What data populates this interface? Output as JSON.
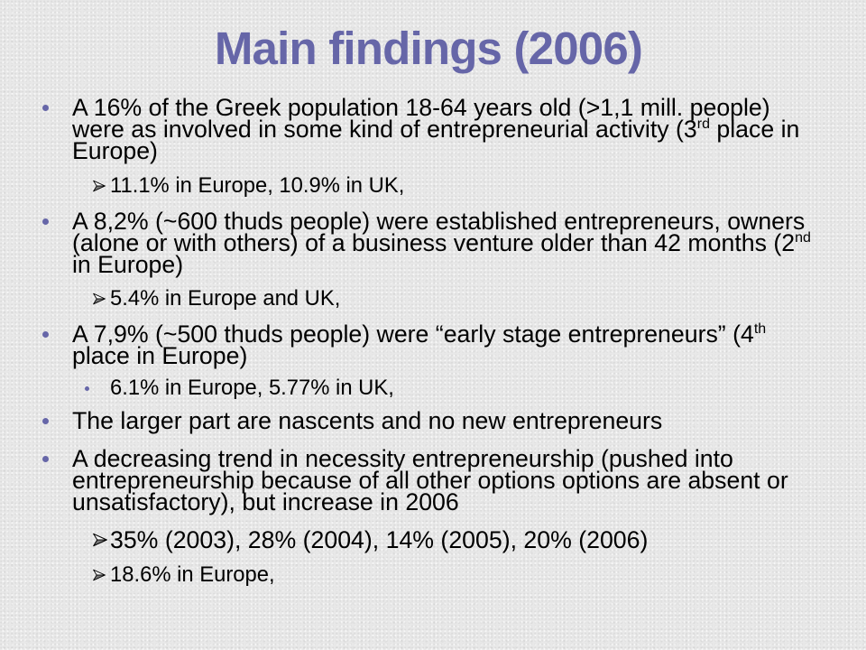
{
  "slide": {
    "title": "Main findings (2006)",
    "colors": {
      "title": "#6666a8",
      "text": "#000000",
      "background": "#e8e8e8",
      "bullet": "#6666a8"
    },
    "findings": [
      {
        "marker": "bullet-dot-icon",
        "before_sup": "A 16% of the Greek population 18-64 years old (>1,1 mill. people) were as involved in some kind of entrepreneurial activity (3",
        "sup": "rd",
        "after_sup": " place in Europe)",
        "details": [
          {
            "marker": "arrow-icon",
            "text": "11.1% in Europe, 10.9% in UK,"
          }
        ]
      },
      {
        "marker": "bullet-dot-icon",
        "before_sup": "A 8,2% (~600 thuds people) were established entrepreneurs, owners (alone or with others) of a business venture older than 42 months (2",
        "sup": "nd",
        "after_sup": " in Europe)",
        "details": [
          {
            "marker": "arrow-icon",
            "text": "5.4% in Europe and UK,"
          }
        ]
      },
      {
        "marker": "bullet-dot-icon",
        "before_sup": "A 7,9% (~500 thuds people) were “early stage entrepreneurs” (4",
        "sup": "th",
        "after_sup": " place in Europe)",
        "details": [
          {
            "marker": "bullet-dot-icon",
            "text": "6.1% in Europe, 5.77% in UK,"
          }
        ]
      },
      {
        "marker": "bullet-dot-icon",
        "text": "The larger part are nascents and no new entrepreneurs"
      },
      {
        "marker": "bullet-dot-icon",
        "text": "A decreasing trend in necessity entrepreneurship (pushed into entrepreneurship because of all other options options are absent or unsatisfactory), but increase in 2006",
        "details": [
          {
            "marker": "arrow-icon",
            "text": "35% (2003), 28% (2004), 14% (2005), 20% (2006)"
          },
          {
            "marker": "arrow-icon",
            "text": "18.6% in Europe,"
          }
        ]
      }
    ]
  }
}
